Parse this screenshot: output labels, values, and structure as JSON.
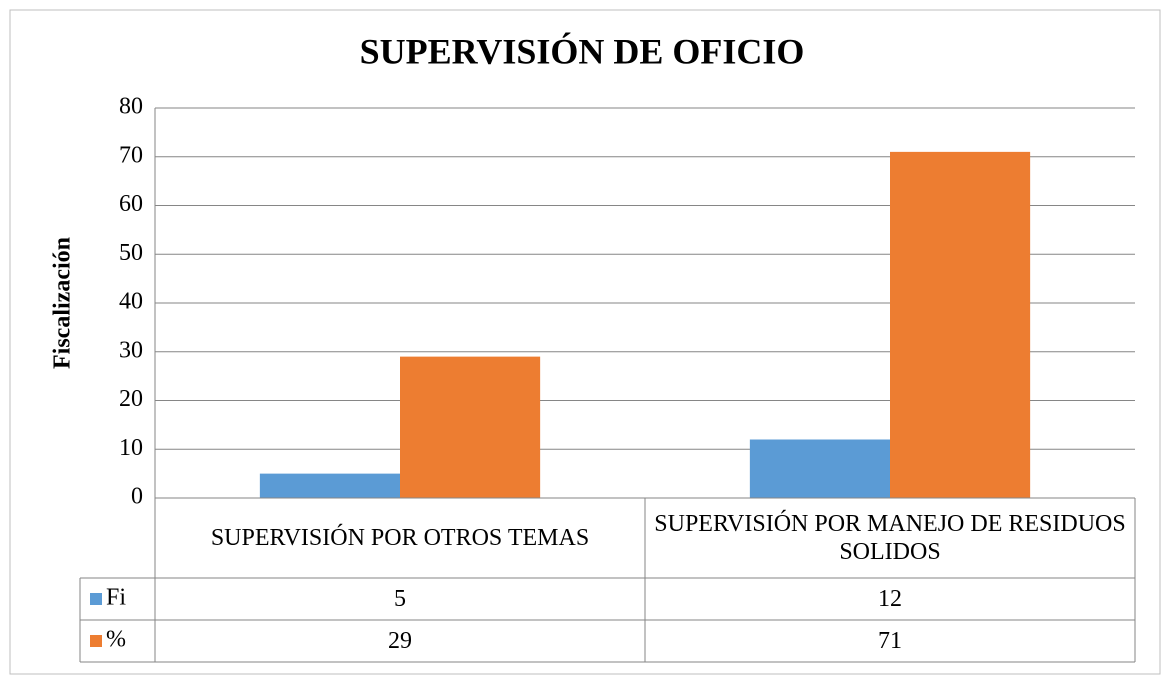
{
  "chart_data": {
    "type": "bar",
    "title": "SUPERVISIÓN DE OFICIO",
    "y_label": "Fiscalización",
    "categories": [
      "SUPERVISIÓN POR OTROS TEMAS",
      "SUPERVISIÓN POR MANEJO DE RESIDUOS SOLIDOS"
    ],
    "series": [
      {
        "name": "Fi",
        "color": "#5b9bd5",
        "values": [
          5,
          12
        ]
      },
      {
        "name": "%",
        "color": "#ed7d31",
        "values": [
          29,
          71
        ]
      }
    ],
    "ylim": [
      0,
      80
    ],
    "yticks": [
      0,
      10,
      20,
      30,
      40,
      50,
      60,
      70,
      80
    ],
    "grid": true,
    "data_table": true
  }
}
